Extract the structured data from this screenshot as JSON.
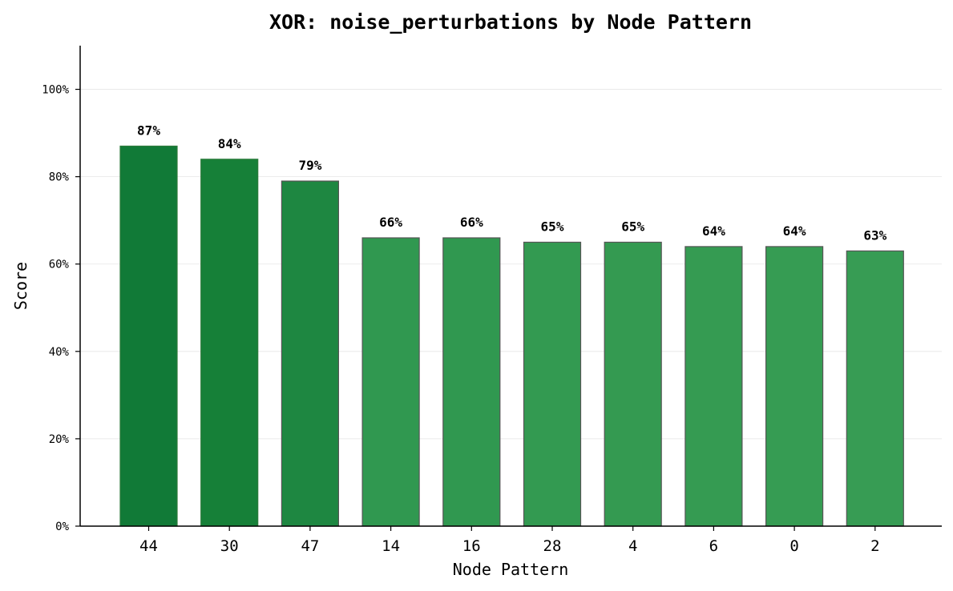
{
  "chart_data": {
    "type": "bar",
    "title": "XOR: noise_perturbations by Node Pattern",
    "xlabel": "Node Pattern",
    "ylabel": "Score",
    "categories": [
      "44",
      "30",
      "47",
      "14",
      "16",
      "28",
      "4",
      "6",
      "0",
      "2"
    ],
    "values": [
      87,
      84,
      79,
      66,
      66,
      65,
      65,
      64,
      64,
      63
    ],
    "data_labels": [
      "87%",
      "84%",
      "79%",
      "66%",
      "66%",
      "65%",
      "65%",
      "64%",
      "64%",
      "63%"
    ],
    "yticks": [
      0,
      20,
      40,
      60,
      80,
      100
    ],
    "ytick_labels": [
      "0%",
      "20%",
      "40%",
      "60%",
      "80%",
      "100%"
    ],
    "ylim": [
      0,
      110
    ],
    "grid": "horizontal",
    "legend": "none",
    "colors": [
      "#117a37",
      "#168038",
      "#1e8741",
      "#309850",
      "#309850",
      "#339a51",
      "#349a51",
      "#359b52",
      "#369c53",
      "#379c54"
    ]
  }
}
